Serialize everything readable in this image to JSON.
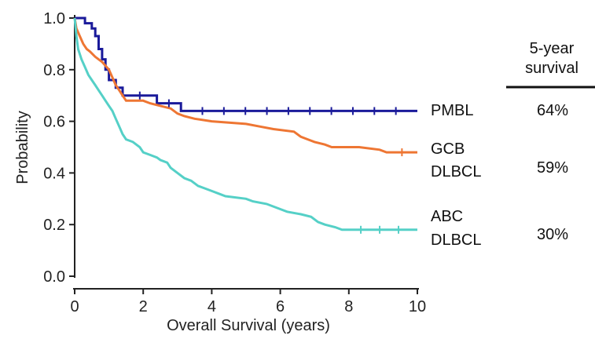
{
  "chart_data": {
    "type": "line",
    "title": "",
    "xlabel": "Overall Survival (years)",
    "ylabel": "Probability",
    "xlim": [
      0,
      10
    ],
    "ylim": [
      0,
      1.0
    ],
    "x_ticks": [
      "0",
      "2",
      "4",
      "6",
      "8",
      "10"
    ],
    "y_ticks": [
      "0.0",
      "0.2",
      "0.4",
      "0.6",
      "0.8",
      "1.0"
    ],
    "grid": false,
    "legend": "right (labels at line ends)",
    "series": [
      {
        "name": "PMBL",
        "label_lines": [
          "PMBL"
        ],
        "survival_5yr": "64%",
        "color": "#1a1a9a",
        "points": [
          [
            0,
            1.0
          ],
          [
            0.3,
            1.0
          ],
          [
            0.3,
            0.98
          ],
          [
            0.5,
            0.98
          ],
          [
            0.5,
            0.96
          ],
          [
            0.6,
            0.96
          ],
          [
            0.6,
            0.93
          ],
          [
            0.7,
            0.93
          ],
          [
            0.7,
            0.88
          ],
          [
            0.8,
            0.88
          ],
          [
            0.8,
            0.84
          ],
          [
            0.9,
            0.84
          ],
          [
            0.9,
            0.8
          ],
          [
            1.0,
            0.8
          ],
          [
            1.0,
            0.76
          ],
          [
            1.2,
            0.76
          ],
          [
            1.2,
            0.73
          ],
          [
            1.4,
            0.73
          ],
          [
            1.4,
            0.7
          ],
          [
            2.4,
            0.7
          ],
          [
            2.4,
            0.67
          ],
          [
            3.1,
            0.67
          ],
          [
            3.1,
            0.64
          ],
          [
            10,
            0.64
          ]
        ]
      },
      {
        "name": "GCB DLBCL",
        "label_lines": [
          "GCB",
          "DLBCL"
        ],
        "survival_5yr": "59%",
        "color": "#ee7633",
        "points": [
          [
            0,
            1.0
          ],
          [
            0.05,
            0.96
          ],
          [
            0.15,
            0.93
          ],
          [
            0.25,
            0.9
          ],
          [
            0.35,
            0.88
          ],
          [
            0.45,
            0.87
          ],
          [
            0.6,
            0.85
          ],
          [
            0.8,
            0.83
          ],
          [
            1.0,
            0.8
          ],
          [
            1.1,
            0.77
          ],
          [
            1.2,
            0.74
          ],
          [
            1.3,
            0.72
          ],
          [
            1.4,
            0.7
          ],
          [
            1.5,
            0.68
          ],
          [
            2.0,
            0.68
          ],
          [
            2.2,
            0.67
          ],
          [
            2.5,
            0.66
          ],
          [
            2.8,
            0.65
          ],
          [
            3.0,
            0.63
          ],
          [
            3.2,
            0.62
          ],
          [
            3.5,
            0.61
          ],
          [
            4.0,
            0.6
          ],
          [
            5.0,
            0.59
          ],
          [
            5.4,
            0.58
          ],
          [
            5.8,
            0.57
          ],
          [
            6.4,
            0.56
          ],
          [
            6.6,
            0.54
          ],
          [
            6.8,
            0.53
          ],
          [
            7.0,
            0.52
          ],
          [
            7.3,
            0.51
          ],
          [
            7.5,
            0.5
          ],
          [
            8.0,
            0.5
          ],
          [
            8.3,
            0.5
          ],
          [
            8.9,
            0.49
          ],
          [
            9.1,
            0.48
          ],
          [
            10,
            0.48
          ]
        ]
      },
      {
        "name": "ABC DLBCL",
        "label_lines": [
          "ABC",
          "DLBCL"
        ],
        "survival_5yr": "30%",
        "color": "#55d0c7",
        "points": [
          [
            0,
            1.0
          ],
          [
            0.05,
            0.93
          ],
          [
            0.1,
            0.88
          ],
          [
            0.2,
            0.84
          ],
          [
            0.3,
            0.81
          ],
          [
            0.4,
            0.78
          ],
          [
            0.5,
            0.76
          ],
          [
            0.6,
            0.74
          ],
          [
            0.7,
            0.72
          ],
          [
            0.8,
            0.7
          ],
          [
            0.9,
            0.68
          ],
          [
            1.0,
            0.66
          ],
          [
            1.1,
            0.64
          ],
          [
            1.2,
            0.61
          ],
          [
            1.3,
            0.58
          ],
          [
            1.4,
            0.55
          ],
          [
            1.5,
            0.53
          ],
          [
            1.7,
            0.52
          ],
          [
            1.9,
            0.5
          ],
          [
            2.0,
            0.48
          ],
          [
            2.2,
            0.47
          ],
          [
            2.4,
            0.46
          ],
          [
            2.5,
            0.45
          ],
          [
            2.7,
            0.44
          ],
          [
            2.8,
            0.42
          ],
          [
            3.0,
            0.4
          ],
          [
            3.2,
            0.38
          ],
          [
            3.4,
            0.37
          ],
          [
            3.6,
            0.35
          ],
          [
            3.8,
            0.34
          ],
          [
            4.0,
            0.33
          ],
          [
            4.2,
            0.32
          ],
          [
            4.4,
            0.31
          ],
          [
            5.0,
            0.3
          ],
          [
            5.2,
            0.29
          ],
          [
            5.6,
            0.28
          ],
          [
            6.0,
            0.26
          ],
          [
            6.2,
            0.25
          ],
          [
            6.6,
            0.24
          ],
          [
            6.9,
            0.23
          ],
          [
            7.1,
            0.21
          ],
          [
            7.3,
            0.2
          ],
          [
            7.6,
            0.19
          ],
          [
            7.8,
            0.18
          ],
          [
            10,
            0.18
          ]
        ]
      }
    ],
    "table": {
      "header_lines": [
        "5-year",
        "survival"
      ]
    }
  }
}
